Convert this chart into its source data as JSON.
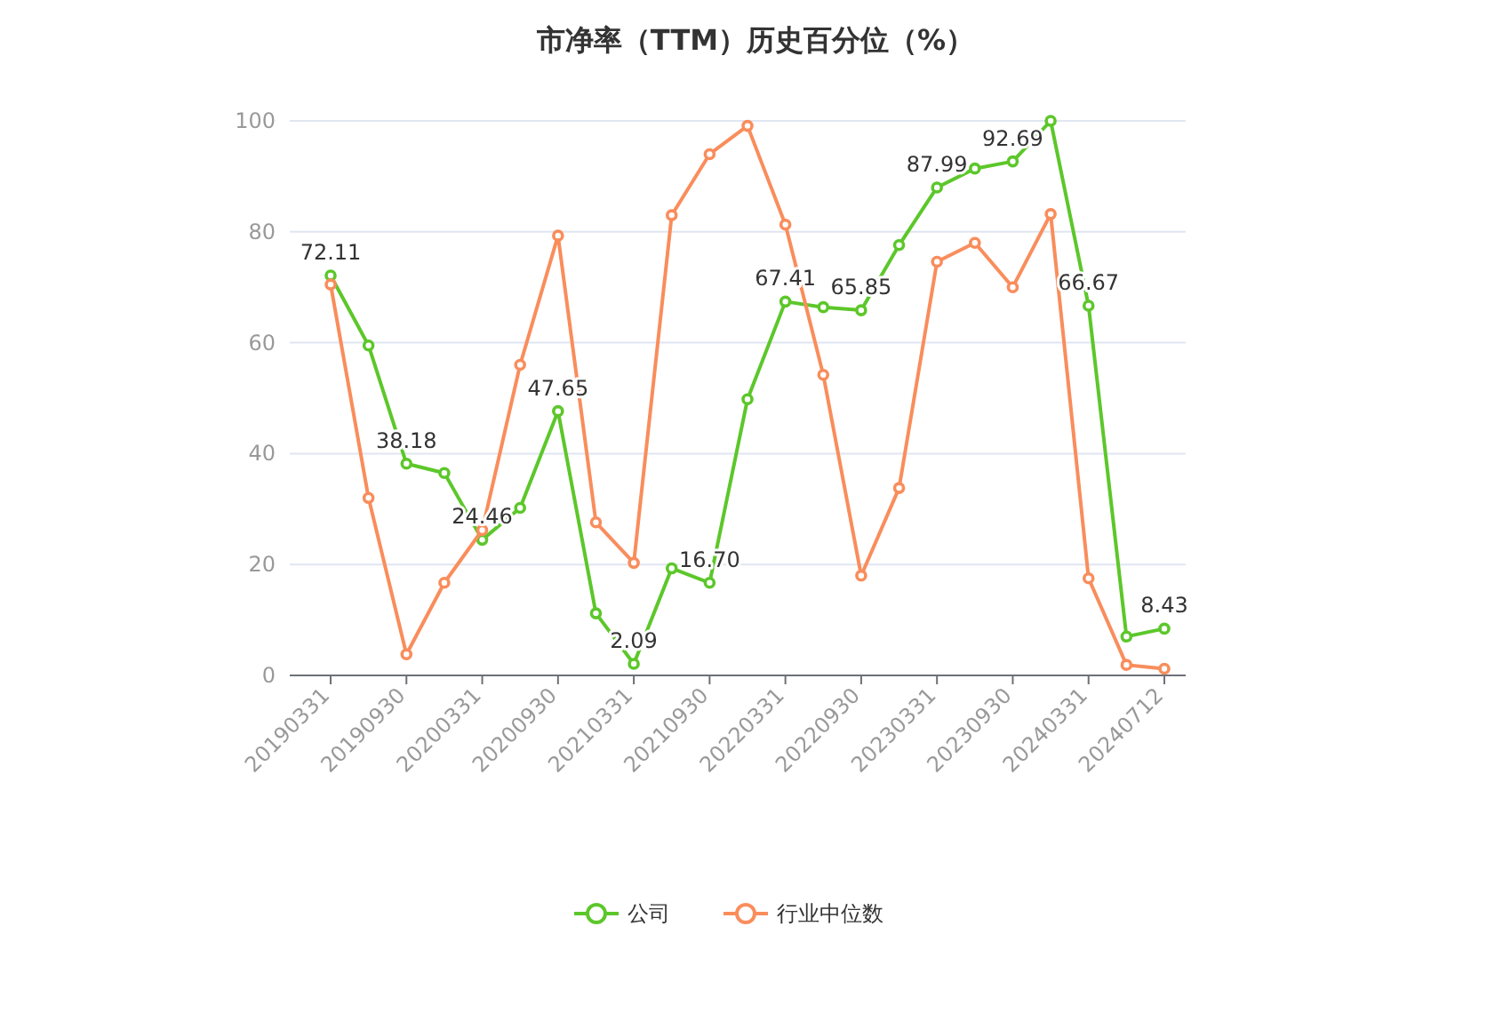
{
  "chart_data": {
    "type": "line",
    "title": "市净率（TTM）历史百分位（%）",
    "categories": [
      "20190331",
      null,
      "20190930",
      null,
      "20200331",
      null,
      "20200930",
      null,
      "20210331",
      null,
      "20210930",
      null,
      "20220331",
      null,
      "20220930",
      null,
      "20230331",
      null,
      "20230930",
      null,
      "20240331",
      null,
      "20240712"
    ],
    "series": [
      {
        "name": "公司",
        "color": "#5cc72a",
        "values": [
          72.11,
          59.5,
          38.18,
          36.5,
          24.46,
          30.2,
          47.65,
          11.2,
          2.09,
          19.3,
          16.7,
          49.8,
          67.41,
          66.4,
          65.85,
          77.6,
          87.99,
          91.4,
          92.69,
          100,
          66.67,
          7,
          8.43
        ],
        "value_labels": [
          "72.11",
          null,
          "38.18",
          null,
          "24.46",
          null,
          "47.65",
          null,
          "2.09",
          null,
          "16.70",
          null,
          "67.41",
          null,
          "65.85",
          null,
          "87.99",
          null,
          "92.69",
          null,
          "66.67",
          null,
          "8.43"
        ]
      },
      {
        "name": "行业中位数",
        "color": "#f98d5c",
        "values": [
          70.5,
          32,
          3.8,
          16.7,
          26.2,
          56,
          79.3,
          27.6,
          20.3,
          83,
          94,
          99.1,
          81.3,
          54.2,
          18,
          33.8,
          74.6,
          78,
          70,
          83.2,
          17.5,
          1.9,
          1.2
        ]
      }
    ],
    "ylim": [
      0,
      100
    ],
    "yticks": [
      0,
      20,
      40,
      60,
      80,
      100
    ],
    "grid": "y",
    "legend": "bottom",
    "marker": "circle",
    "line_style": "solid"
  }
}
